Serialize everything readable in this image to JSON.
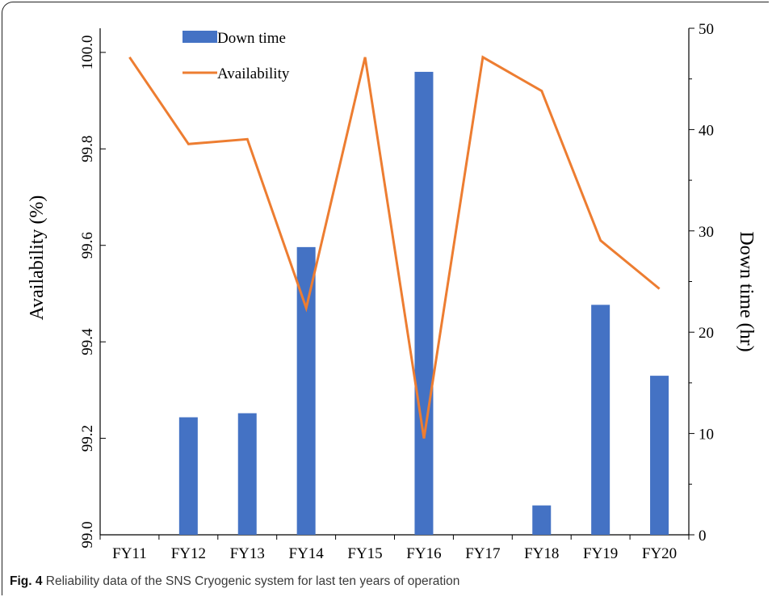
{
  "caption": {
    "label": "Fig. 4",
    "text": "Reliability data of the SNS Cryogenic system for last ten years of operation"
  },
  "chart_data": {
    "type": "bar",
    "categories": [
      "FY11",
      "FY12",
      "FY13",
      "FY14",
      "FY15",
      "FY16",
      "FY17",
      "FY18",
      "FY19",
      "FY20"
    ],
    "series": [
      {
        "name": "Down time",
        "kind": "bar",
        "axis": "right",
        "color": "#4472c4",
        "values": [
          0,
          11.6,
          12.0,
          28.4,
          0,
          45.7,
          0,
          2.9,
          22.7,
          15.7
        ]
      },
      {
        "name": "Availability",
        "kind": "line",
        "axis": "left",
        "color": "#ed7d31",
        "values": [
          99.99,
          99.81,
          99.82,
          99.47,
          99.99,
          99.2,
          99.99,
          99.92,
          99.61,
          99.51
        ]
      }
    ],
    "ylabel": "Availability  (%)",
    "ylabel_right": "Down time (hr)",
    "ylim": [
      99.0,
      100.05
    ],
    "ylim_right": [
      0,
      50
    ],
    "yticks": [
      "99.0",
      "99.2",
      "99.4",
      "99.6",
      "99.8",
      "100.0"
    ],
    "yticks_right": [
      "0",
      "10",
      "20",
      "30",
      "40",
      "50"
    ],
    "legend_position": "top-left",
    "grid": false
  }
}
